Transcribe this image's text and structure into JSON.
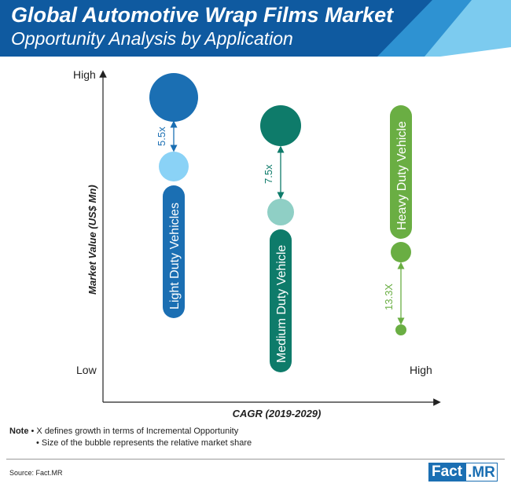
{
  "header": {
    "title": "Global Automotive Wrap Films Market",
    "subtitle": "Opportunity Analysis by Application",
    "color_dark": "#0f5aa0",
    "color_mid": "#2e92d2",
    "color_light": "#7ccbef"
  },
  "chart_data": {
    "type": "bubble",
    "xlabel": "CAGR (2019-2029)",
    "ylabel": "Market Value (US$ Mn)",
    "y_axis_ticks": {
      "high": "High",
      "low": "Low"
    },
    "x_axis_ticks": {
      "high": "High"
    },
    "series": [
      {
        "name": "Light Duty Vehicles",
        "color_large": "#1b6fb3",
        "color_small": "#8ad2f6",
        "label_color": "#1b6fb3",
        "multiplier": "5.5x",
        "multiplier_color": "#1b6fb3"
      },
      {
        "name": "Medium Duty Vehicle",
        "color_large": "#0e7b6a",
        "color_small": "#8fcfc5",
        "label_color": "#0e7b6a",
        "multiplier": "7.5x",
        "multiplier_color": "#0e7b6a"
      },
      {
        "name": "Heavy Duty Vehicle",
        "color_large": "#6aae43",
        "color_small": "#6aae43",
        "label_color": "#6aae43",
        "multiplier": "13.3X",
        "multiplier_color": "#6aae43"
      }
    ]
  },
  "notes": {
    "label": "Note",
    "line1": "X defines growth in terms of Incremental Opportunity",
    "line2": "Size of the bubble represents the relative market share"
  },
  "source": "Source: Fact.MR",
  "brand": {
    "part1": "Fact",
    "part2": ".MR"
  }
}
